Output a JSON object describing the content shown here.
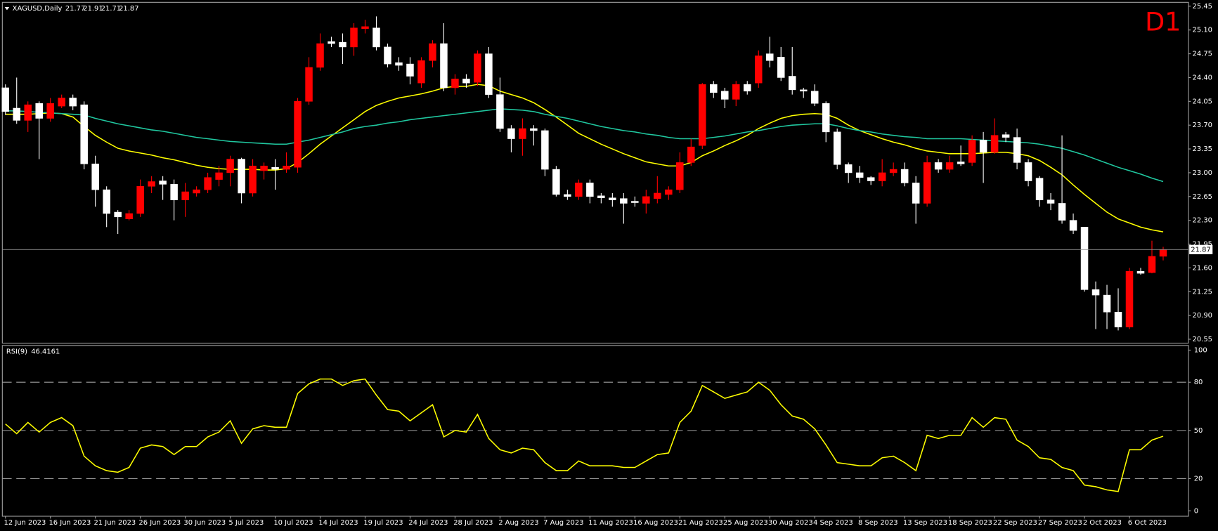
{
  "chart_data": [
    {
      "type": "candlestick",
      "title": "XAGUSD,Daily",
      "timeframe": "D1",
      "categories": [
        "12 Jun 2023",
        null,
        null,
        null,
        "16 Jun 2023",
        null,
        null,
        null,
        "21 Jun 2023",
        null,
        null,
        null,
        "26 Jun 2023",
        null,
        null,
        null,
        "30 Jun 2023",
        null,
        null,
        null,
        "5 Jul 2023",
        null,
        null,
        null,
        "10 Jul 2023",
        null,
        null,
        null,
        "14 Jul 2023",
        null,
        null,
        null,
        "19 Jul 2023",
        null,
        null,
        null,
        "24 Jul 2023",
        null,
        null,
        null,
        "28 Jul 2023",
        null,
        null,
        null,
        "2 Aug 2023",
        null,
        null,
        null,
        "7 Aug 2023",
        null,
        null,
        null,
        "11 Aug 2023",
        null,
        null,
        null,
        "16 Aug 2023",
        null,
        null,
        null,
        "21 Aug 2023",
        null,
        null,
        null,
        "25 Aug 2023",
        null,
        null,
        null,
        "30 Aug 2023",
        null,
        null,
        null,
        "4 Sep 2023",
        null,
        null,
        null,
        "8 Sep 2023",
        null,
        null,
        null,
        "13 Sep 2023",
        null,
        null,
        null,
        "18 Sep 2023",
        null,
        null,
        null,
        "22 Sep 2023",
        null,
        null,
        null,
        "27 Sep 2023",
        null,
        null,
        null,
        "2 Oct 2023",
        null,
        null,
        null,
        "6 Oct 2023",
        null,
        null,
        null
      ],
      "open": [
        24.25,
        23.95,
        23.77,
        24.02,
        23.8,
        23.98,
        24.1,
        24.0,
        23.13,
        22.75,
        22.42,
        22.32,
        22.4,
        22.8,
        22.88,
        22.83,
        22.6,
        22.7,
        22.75,
        22.9,
        23.0,
        23.2,
        22.7,
        23.03,
        23.08,
        23.05,
        23.08,
        24.05,
        24.55,
        24.93,
        24.92,
        24.85,
        25.12,
        25.13,
        24.85,
        24.62,
        24.6,
        24.32,
        24.65,
        24.9,
        24.25,
        24.38,
        24.33,
        24.75,
        24.15,
        23.65,
        23.5,
        23.65,
        23.62,
        23.05,
        22.68,
        22.65,
        22.85,
        22.66,
        22.63,
        22.62,
        22.58,
        22.55,
        22.62,
        22.68,
        22.75,
        23.15,
        23.4,
        24.3,
        24.2,
        24.08,
        24.3,
        24.32,
        24.75,
        24.7,
        24.42,
        24.22,
        24.2,
        24.02,
        23.6,
        23.12,
        23.0,
        22.93,
        22.88,
        23.0,
        23.05,
        22.85,
        22.55,
        23.15,
        23.05,
        23.16,
        23.15,
        23.48,
        23.3,
        23.56,
        23.52,
        23.15,
        22.92,
        22.6,
        22.55,
        22.3,
        22.2,
        21.28,
        21.2,
        20.95,
        20.73,
        21.55,
        21.53,
        21.77
      ],
      "high": [
        24.3,
        24.4,
        24.05,
        24.05,
        24.1,
        24.15,
        24.15,
        24.05,
        23.25,
        22.8,
        22.45,
        22.45,
        22.9,
        22.95,
        22.95,
        22.9,
        22.85,
        22.8,
        23.0,
        23.1,
        23.25,
        23.22,
        23.2,
        23.15,
        23.2,
        23.3,
        24.1,
        24.7,
        25.05,
        25.0,
        25.05,
        25.2,
        25.25,
        25.3,
        24.9,
        24.7,
        24.7,
        24.7,
        24.95,
        25.2,
        24.45,
        24.45,
        24.8,
        24.85,
        24.4,
        23.7,
        23.8,
        23.7,
        23.65,
        23.1,
        22.75,
        22.9,
        22.9,
        22.7,
        22.7,
        22.7,
        22.65,
        22.75,
        22.95,
        22.8,
        23.3,
        23.5,
        24.32,
        24.35,
        24.25,
        24.35,
        24.35,
        24.8,
        25.0,
        24.85,
        24.85,
        24.25,
        24.3,
        24.05,
        23.65,
        23.15,
        23.1,
        22.95,
        23.2,
        23.15,
        23.15,
        22.95,
        23.25,
        23.2,
        23.25,
        23.4,
        23.55,
        23.6,
        23.8,
        23.6,
        23.65,
        23.2,
        22.95,
        22.7,
        23.55,
        22.4,
        22.2,
        21.4,
        21.35,
        21.3,
        21.6,
        21.6,
        22.0,
        21.91
      ],
      "low": [
        23.85,
        23.72,
        23.6,
        23.2,
        23.75,
        23.95,
        23.92,
        23.05,
        22.5,
        22.2,
        22.1,
        22.3,
        22.35,
        22.7,
        22.6,
        22.3,
        22.35,
        22.65,
        22.7,
        22.8,
        22.8,
        22.55,
        22.65,
        22.9,
        22.75,
        23.0,
        23.0,
        24.0,
        24.5,
        24.85,
        24.6,
        24.72,
        25.05,
        24.8,
        24.55,
        24.5,
        24.3,
        24.25,
        24.55,
        24.2,
        24.15,
        24.25,
        24.28,
        24.1,
        23.6,
        23.3,
        23.25,
        23.4,
        22.95,
        22.65,
        22.6,
        22.6,
        22.55,
        22.55,
        22.5,
        22.25,
        22.5,
        22.4,
        22.55,
        22.6,
        22.7,
        23.1,
        23.35,
        24.1,
        23.95,
        23.98,
        24.15,
        24.25,
        24.55,
        24.35,
        24.15,
        24.1,
        23.98,
        23.45,
        23.05,
        22.85,
        22.85,
        22.82,
        22.8,
        22.95,
        22.8,
        22.25,
        22.5,
        23.0,
        23.0,
        23.1,
        23.1,
        22.85,
        23.28,
        23.45,
        23.05,
        22.8,
        22.5,
        22.45,
        22.25,
        22.1,
        21.25,
        20.7,
        20.7,
        20.68,
        20.7,
        21.5,
        21.52,
        21.71
      ],
      "close": [
        23.9,
        23.77,
        24.0,
        23.8,
        24.02,
        24.1,
        23.98,
        23.13,
        22.75,
        22.4,
        22.35,
        22.4,
        22.8,
        22.87,
        22.83,
        22.6,
        22.72,
        22.75,
        22.93,
        23.0,
        23.2,
        22.7,
        23.1,
        23.1,
        23.05,
        23.1,
        24.05,
        24.55,
        24.9,
        24.9,
        24.85,
        25.13,
        25.15,
        24.85,
        24.6,
        24.58,
        24.42,
        24.65,
        24.9,
        24.25,
        24.38,
        24.32,
        24.75,
        24.15,
        23.65,
        23.5,
        23.65,
        23.62,
        23.05,
        22.68,
        22.65,
        22.85,
        22.65,
        22.63,
        22.6,
        22.55,
        22.56,
        22.65,
        22.7,
        22.75,
        23.15,
        23.38,
        24.3,
        24.18,
        24.08,
        24.3,
        24.2,
        24.72,
        24.65,
        24.4,
        24.22,
        24.2,
        24.02,
        23.6,
        23.12,
        23.0,
        22.93,
        22.88,
        23.0,
        23.05,
        22.85,
        22.55,
        23.15,
        23.05,
        23.15,
        23.13,
        23.48,
        23.3,
        23.55,
        23.52,
        23.15,
        22.88,
        22.6,
        22.55,
        22.3,
        22.15,
        21.28,
        21.2,
        20.95,
        20.73,
        21.55,
        21.52,
        21.77,
        21.87
      ],
      "up_color": "#ff0000",
      "down_color": "#ffffff",
      "overlays": [
        {
          "color": "#ffff00",
          "values": [
            23.86,
            23.86,
            23.86,
            23.87,
            23.88,
            23.87,
            23.82,
            23.68,
            23.55,
            23.45,
            23.36,
            23.32,
            23.29,
            23.26,
            23.22,
            23.19,
            23.15,
            23.11,
            23.08,
            23.06,
            23.05,
            23.05,
            23.05,
            23.04,
            23.04,
            23.06,
            23.15,
            23.28,
            23.42,
            23.54,
            23.66,
            23.78,
            23.9,
            23.99,
            24.05,
            24.1,
            24.13,
            24.16,
            24.2,
            24.25,
            24.27,
            24.27,
            24.3,
            24.28,
            24.2,
            24.15,
            24.1,
            24.03,
            23.93,
            23.82,
            23.7,
            23.58,
            23.5,
            23.42,
            23.35,
            23.28,
            23.22,
            23.16,
            23.13,
            23.1,
            23.1,
            23.15,
            23.25,
            23.32,
            23.4,
            23.47,
            23.55,
            23.65,
            23.73,
            23.8,
            23.84,
            23.86,
            23.87,
            23.86,
            23.8,
            23.7,
            23.62,
            23.56,
            23.5,
            23.45,
            23.41,
            23.36,
            23.32,
            23.3,
            23.28,
            23.28,
            23.28,
            23.29,
            23.3,
            23.3,
            23.28,
            23.25,
            23.18,
            23.08,
            22.97,
            22.82,
            22.68,
            22.55,
            22.42,
            22.32,
            22.26,
            22.2,
            22.16,
            22.13
          ]
        },
        {
          "color": "#20c8a0",
          "values": [
            23.91,
            23.91,
            23.9,
            23.89,
            23.88,
            23.87,
            23.86,
            23.85,
            23.8,
            23.76,
            23.72,
            23.69,
            23.66,
            23.63,
            23.61,
            23.58,
            23.55,
            23.52,
            23.5,
            23.48,
            23.46,
            23.45,
            23.44,
            23.43,
            23.42,
            23.42,
            23.45,
            23.48,
            23.52,
            23.56,
            23.6,
            23.65,
            23.68,
            23.7,
            23.73,
            23.75,
            23.78,
            23.8,
            23.82,
            23.84,
            23.86,
            23.88,
            23.9,
            23.92,
            23.94,
            23.93,
            23.92,
            23.9,
            23.86,
            23.83,
            23.8,
            23.76,
            23.72,
            23.68,
            23.65,
            23.62,
            23.6,
            23.57,
            23.55,
            23.52,
            23.5,
            23.5,
            23.5,
            23.52,
            23.54,
            23.57,
            23.6,
            23.62,
            23.65,
            23.68,
            23.7,
            23.71,
            23.72,
            23.72,
            23.69,
            23.65,
            23.62,
            23.6,
            23.57,
            23.55,
            23.53,
            23.52,
            23.5,
            23.5,
            23.5,
            23.5,
            23.49,
            23.48,
            23.47,
            23.46,
            23.45,
            23.44,
            23.42,
            23.39,
            23.36,
            23.31,
            23.26,
            23.2,
            23.14,
            23.08,
            23.03,
            22.98,
            22.92,
            22.87
          ]
        }
      ],
      "ylim": [
        20.55,
        25.45
      ],
      "yticks": [
        25.45,
        {
          "value": 25.1,
          "label": "25.10"
        },
        24.75,
        {
          "value": 24.4,
          "label": "24.40"
        },
        24.05,
        {
          "value": 23.7,
          "label": "23.70"
        },
        23.35,
        {
          "value": 23.0,
          "label": "23.00"
        },
        22.65,
        {
          "value": 22.3,
          "label": "22.30"
        },
        21.95,
        {
          "value": 21.6,
          "label": "21.60"
        },
        21.25,
        {
          "value": 20.9,
          "label": "20.90"
        },
        20.55
      ]
    },
    {
      "type": "line",
      "title": "RSI(9)",
      "color": "#ffff00",
      "values": [
        54,
        48,
        55,
        49,
        55,
        58,
        53,
        34,
        28,
        25,
        24,
        27,
        39,
        41,
        40,
        35,
        40,
        40,
        46,
        49,
        56,
        42,
        51,
        53,
        52,
        52,
        73,
        79,
        82,
        82,
        78,
        81,
        82,
        72,
        63,
        62,
        56,
        61,
        66,
        46,
        50,
        49,
        60,
        45,
        38,
        36,
        39,
        38,
        30,
        25,
        25,
        31,
        28,
        28,
        28,
        27,
        27,
        31,
        35,
        36,
        55,
        62,
        78,
        74,
        70,
        72,
        74,
        80,
        75,
        66,
        59,
        57,
        51,
        41,
        30,
        29,
        28,
        28,
        33,
        34,
        30,
        25,
        47,
        45,
        47,
        47,
        58,
        52,
        58,
        57,
        44,
        40,
        33,
        32,
        27,
        25,
        16,
        15,
        13,
        12,
        38,
        38,
        44,
        46.4161
      ],
      "ylim": [
        0,
        100
      ],
      "yticks": [
        100,
        80,
        50,
        20,
        0
      ]
    }
  ]
}
